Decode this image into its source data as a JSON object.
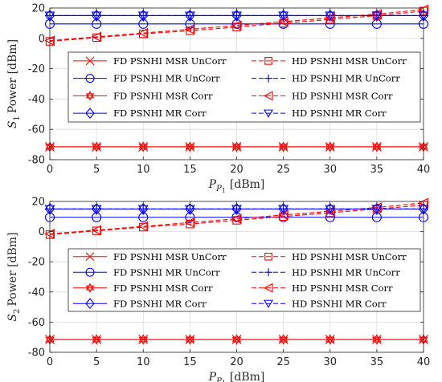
{
  "chart_data": [
    {
      "type": "line",
      "xlabel": "P_P1 [dBm]",
      "ylabel": "S1 Power [dBm]",
      "xlim": [
        0,
        40
      ],
      "ylim": [
        -80,
        20
      ],
      "xticks": [
        "0",
        "5",
        "10",
        "15",
        "20",
        "25",
        "30",
        "35",
        "40"
      ],
      "yticks": [
        "20",
        "0",
        "-20",
        "-40",
        "-60",
        "-80"
      ],
      "grid": true,
      "legend_position": "center",
      "x": [
        0,
        5,
        10,
        15,
        20,
        25,
        30,
        35,
        40
      ],
      "series": [
        {
          "name": "FD PSNHI MSR UnCorr",
          "color": "#ff0000",
          "dash": "solid",
          "marker": "x",
          "values": [
            -71.5,
            -71.5,
            -71.5,
            -71.5,
            -71.5,
            -71.5,
            -71.5,
            -71.5,
            -71.5
          ]
        },
        {
          "name": "FD PSNHI MR UnCorr",
          "color": "#0000ff",
          "dash": "solid",
          "marker": "o",
          "values": [
            9.5,
            9.5,
            9.5,
            9.5,
            9.5,
            9.5,
            9.5,
            9.5,
            9.5
          ]
        },
        {
          "name": "FD PSNHI MSR Corr",
          "color": "#ff0000",
          "dash": "solid",
          "marker": "hexagram",
          "values": [
            -71.5,
            -71.5,
            -71.5,
            -71.5,
            -71.5,
            -71.5,
            -71.5,
            -71.5,
            -71.5
          ]
        },
        {
          "name": "FD PSNHI MR Corr",
          "color": "#0000ff",
          "dash": "solid",
          "marker": "diamond",
          "values": [
            15,
            15,
            15,
            15,
            15,
            15,
            15,
            15,
            15
          ]
        },
        {
          "name": "HD PSNHI MSR UnCorr",
          "color": "#ff0000",
          "dash": "dashed",
          "marker": "square",
          "values": [
            -2,
            0.5,
            3,
            5,
            7.5,
            10,
            12.5,
            15,
            18
          ]
        },
        {
          "name": "HD PSNHI MR UnCorr",
          "color": "#0000ff",
          "dash": "dashed",
          "marker": "+",
          "values": [
            15,
            15,
            15,
            15,
            15,
            15,
            15,
            15,
            15
          ]
        },
        {
          "name": "HD PSNHI MSR Corr",
          "color": "#ff0000",
          "dash": "dashed",
          "marker": "triangle-left",
          "values": [
            -1.5,
            1,
            3.5,
            6,
            8.5,
            11,
            13.5,
            16,
            19
          ]
        },
        {
          "name": "HD PSNHI MR Corr",
          "color": "#0000ff",
          "dash": "dashed",
          "marker": "triangle-down",
          "values": [
            15,
            15,
            15,
            15,
            15,
            15,
            15,
            15,
            15
          ]
        }
      ]
    },
    {
      "type": "line",
      "xlabel": "P_P1 [dBm]",
      "ylabel": "S2 Power [dBm]",
      "xlim": [
        0,
        40
      ],
      "ylim": [
        -80,
        20
      ],
      "xticks": [
        "0",
        "5",
        "10",
        "15",
        "20",
        "25",
        "30",
        "35",
        "40"
      ],
      "yticks": [
        "20",
        "0",
        "-20",
        "-40",
        "-60",
        "-80"
      ],
      "grid": true,
      "legend_position": "center",
      "x": [
        0,
        5,
        10,
        15,
        20,
        25,
        30,
        35,
        40
      ],
      "series": [
        {
          "name": "FD PSNHI MSR UnCorr",
          "color": "#ff0000",
          "dash": "solid",
          "marker": "x",
          "values": [
            -71.5,
            -71.5,
            -71.5,
            -71.5,
            -71.5,
            -71.5,
            -71.5,
            -71.5,
            -71.5
          ]
        },
        {
          "name": "FD PSNHI MR UnCorr",
          "color": "#0000ff",
          "dash": "solid",
          "marker": "o",
          "values": [
            9.5,
            9.5,
            9.5,
            9.5,
            9.5,
            9.5,
            9.5,
            9.5,
            9.5
          ]
        },
        {
          "name": "FD PSNHI MSR Corr",
          "color": "#ff0000",
          "dash": "solid",
          "marker": "hexagram",
          "values": [
            -71.5,
            -71.5,
            -71.5,
            -71.5,
            -71.5,
            -71.5,
            -71.5,
            -71.5,
            -71.5
          ]
        },
        {
          "name": "FD PSNHI MR Corr",
          "color": "#0000ff",
          "dash": "solid",
          "marker": "diamond",
          "values": [
            15,
            15,
            15,
            15,
            15,
            15,
            15,
            15,
            15
          ]
        },
        {
          "name": "HD PSNHI MSR UnCorr",
          "color": "#ff0000",
          "dash": "dashed",
          "marker": "square",
          "values": [
            -2,
            0.5,
            3,
            5,
            7.5,
            10,
            12.5,
            15,
            17.5
          ]
        },
        {
          "name": "HD PSNHI MR UnCorr",
          "color": "#0000ff",
          "dash": "dashed",
          "marker": "+",
          "values": [
            15,
            15,
            15,
            15,
            15,
            15,
            15,
            15,
            15
          ]
        },
        {
          "name": "HD PSNHI MSR Corr",
          "color": "#ff0000",
          "dash": "dashed",
          "marker": "triangle-left",
          "values": [
            -1.5,
            1,
            3.5,
            6,
            8.5,
            11,
            13.5,
            16,
            19
          ]
        },
        {
          "name": "HD PSNHI MR Corr",
          "color": "#0000ff",
          "dash": "dashed",
          "marker": "triangle-down",
          "values": [
            15,
            15,
            15,
            15,
            15,
            15,
            15,
            15,
            15
          ]
        }
      ]
    }
  ]
}
